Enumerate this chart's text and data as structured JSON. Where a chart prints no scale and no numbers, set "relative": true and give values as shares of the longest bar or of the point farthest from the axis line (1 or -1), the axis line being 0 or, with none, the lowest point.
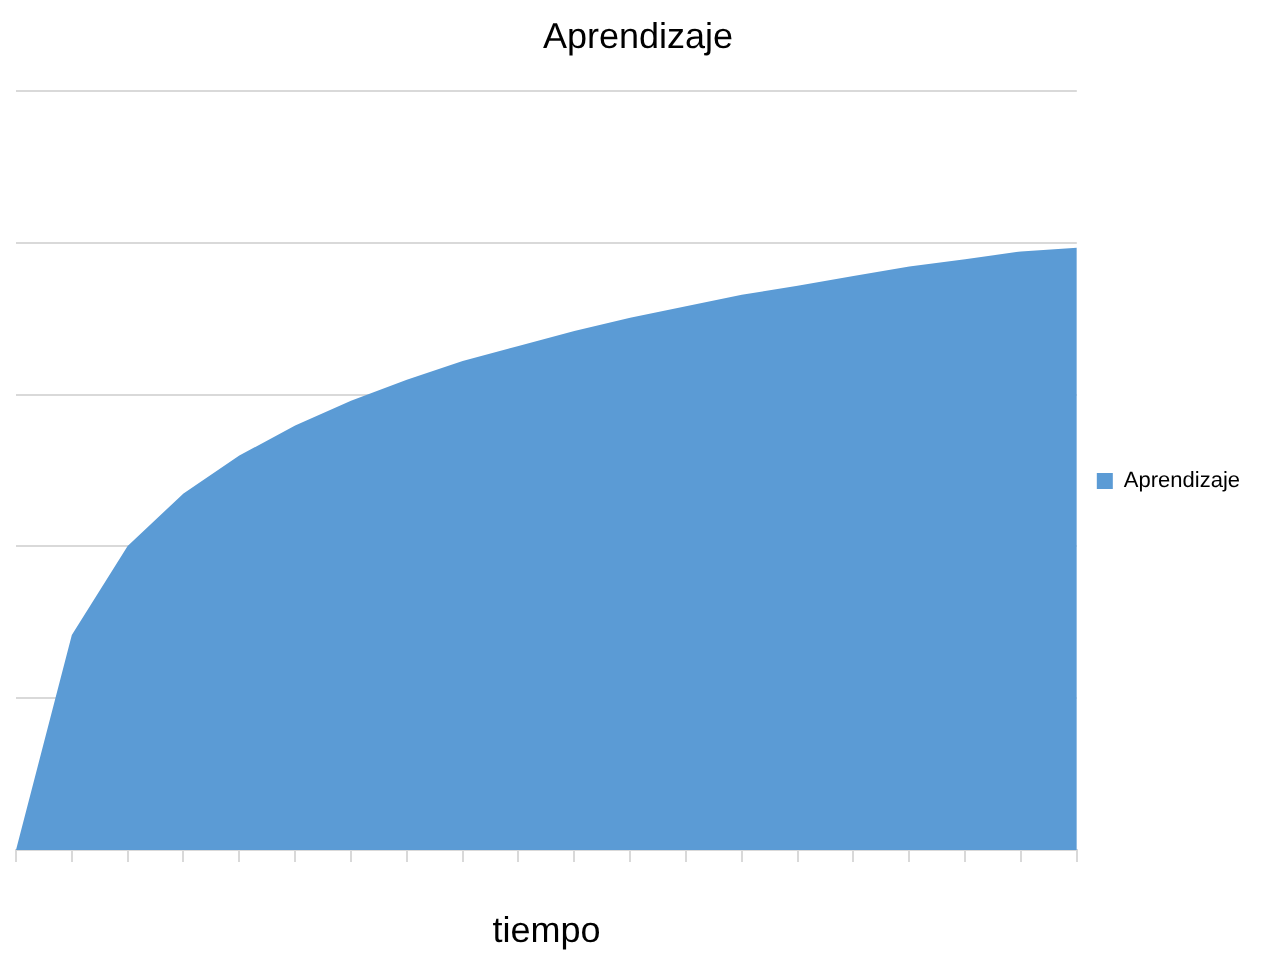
{
  "chart_data": {
    "type": "area",
    "title": "Aprendizaje",
    "xlabel": "tiempo",
    "relative": true,
    "grid": "y",
    "legend": "right",
    "categories": [
      null,
      null,
      null,
      null,
      null,
      null,
      null,
      null,
      null,
      null,
      null,
      null,
      null,
      null,
      null,
      null,
      null,
      null,
      null,
      null
    ],
    "series": [
      {
        "name": "Aprendizaje",
        "color": "#5b9bd5",
        "values": [
          0,
          0.357,
          0.505,
          0.592,
          0.655,
          0.705,
          0.746,
          0.781,
          0.812,
          0.837,
          0.862,
          0.884,
          0.903,
          0.922,
          0.937,
          0.953,
          0.969,
          0.981,
          0.994,
          1
        ]
      }
    ]
  }
}
